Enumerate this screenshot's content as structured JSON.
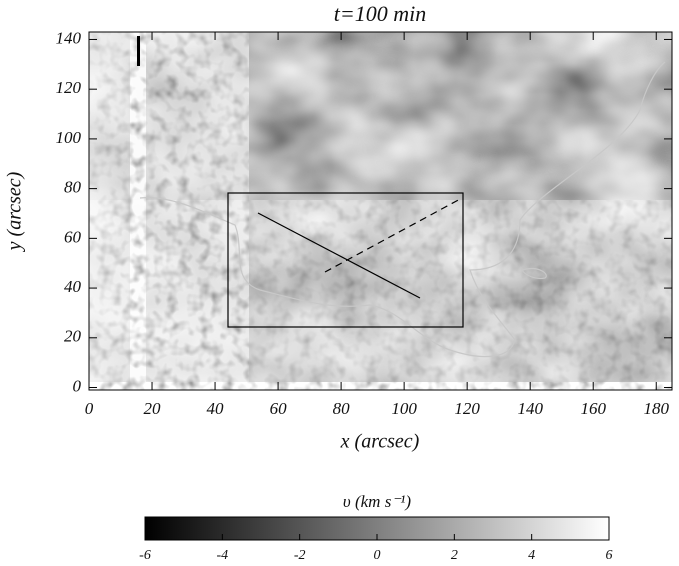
{
  "chart_data": {
    "type": "heatmap",
    "title": "t=100 min",
    "xlabel": "x (arcsec)",
    "ylabel": "y (arcsec)",
    "xlim": [
      0,
      185
    ],
    "ylim": [
      -1,
      143
    ],
    "xticks": [
      0,
      20,
      40,
      60,
      80,
      100,
      120,
      140,
      160,
      180
    ],
    "yticks": [
      0,
      20,
      40,
      60,
      80,
      100,
      120,
      140
    ],
    "colormap": "gray",
    "colorbar": {
      "label": "υ (km s⁻¹)",
      "lim": [
        -6,
        6
      ],
      "ticks": [
        -6,
        -4,
        -2,
        0,
        2,
        4,
        6
      ]
    }
  }
}
